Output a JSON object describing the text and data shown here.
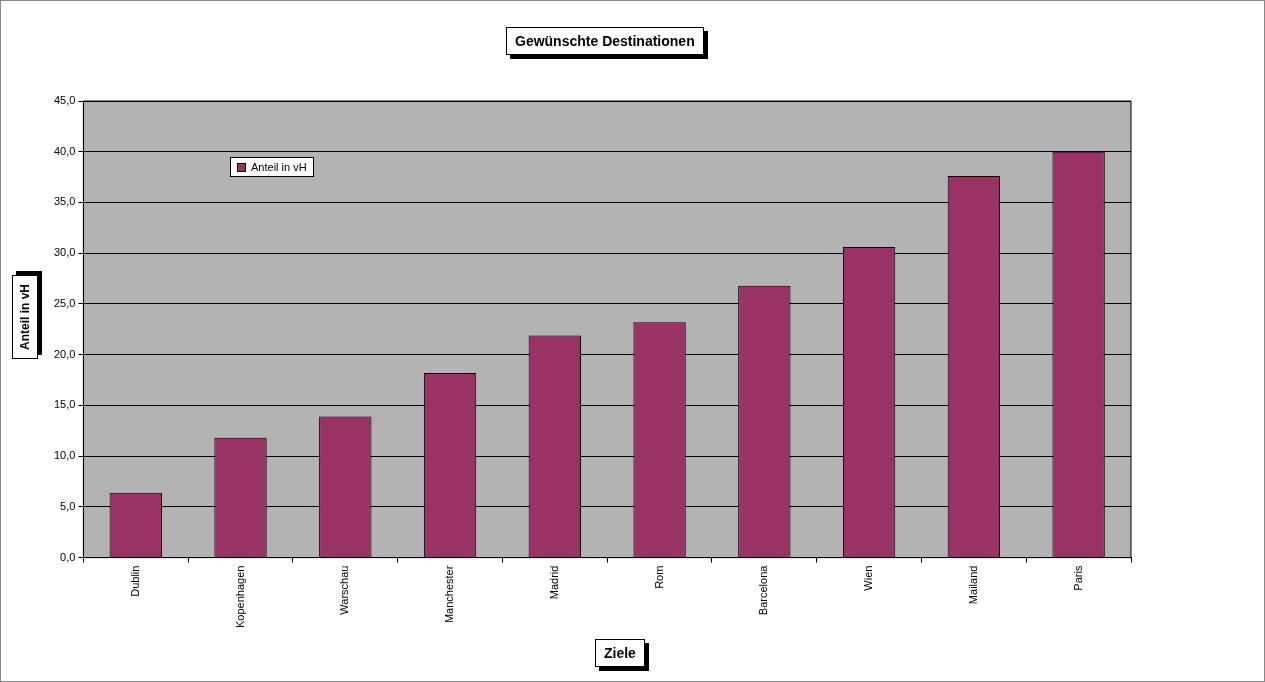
{
  "chart_data": {
    "type": "bar",
    "title": "Gewünschte Destinationen",
    "xlabel": "Ziele",
    "ylabel": "Anteil in vH",
    "categories": [
      "Dublin",
      "Kopenhagen",
      "Warschau",
      "Manchester",
      "Madrid",
      "Rom",
      "Barcelona",
      "Wien",
      "Mailand",
      "Paris"
    ],
    "series": [
      {
        "name": "Anteil in vH",
        "color": "#993366",
        "values": [
          6.4,
          11.8,
          13.9,
          18.2,
          21.9,
          23.2,
          26.8,
          30.6,
          37.6,
          40.0
        ]
      }
    ],
    "ylim": [
      0,
      45
    ],
    "yticks": [
      {
        "value": 0,
        "label": "0,0"
      },
      {
        "value": 5,
        "label": "5,0"
      },
      {
        "value": 10,
        "label": "10,0"
      },
      {
        "value": 15,
        "label": "15,0"
      },
      {
        "value": 20,
        "label": "20,0"
      },
      {
        "value": 25,
        "label": "25,0"
      },
      {
        "value": 30,
        "label": "30,0"
      },
      {
        "value": 35,
        "label": "35,0"
      },
      {
        "value": 40,
        "label": "40,0"
      },
      {
        "value": 45,
        "label": "45,0"
      }
    ],
    "grid": "y",
    "legend": "top left"
  }
}
